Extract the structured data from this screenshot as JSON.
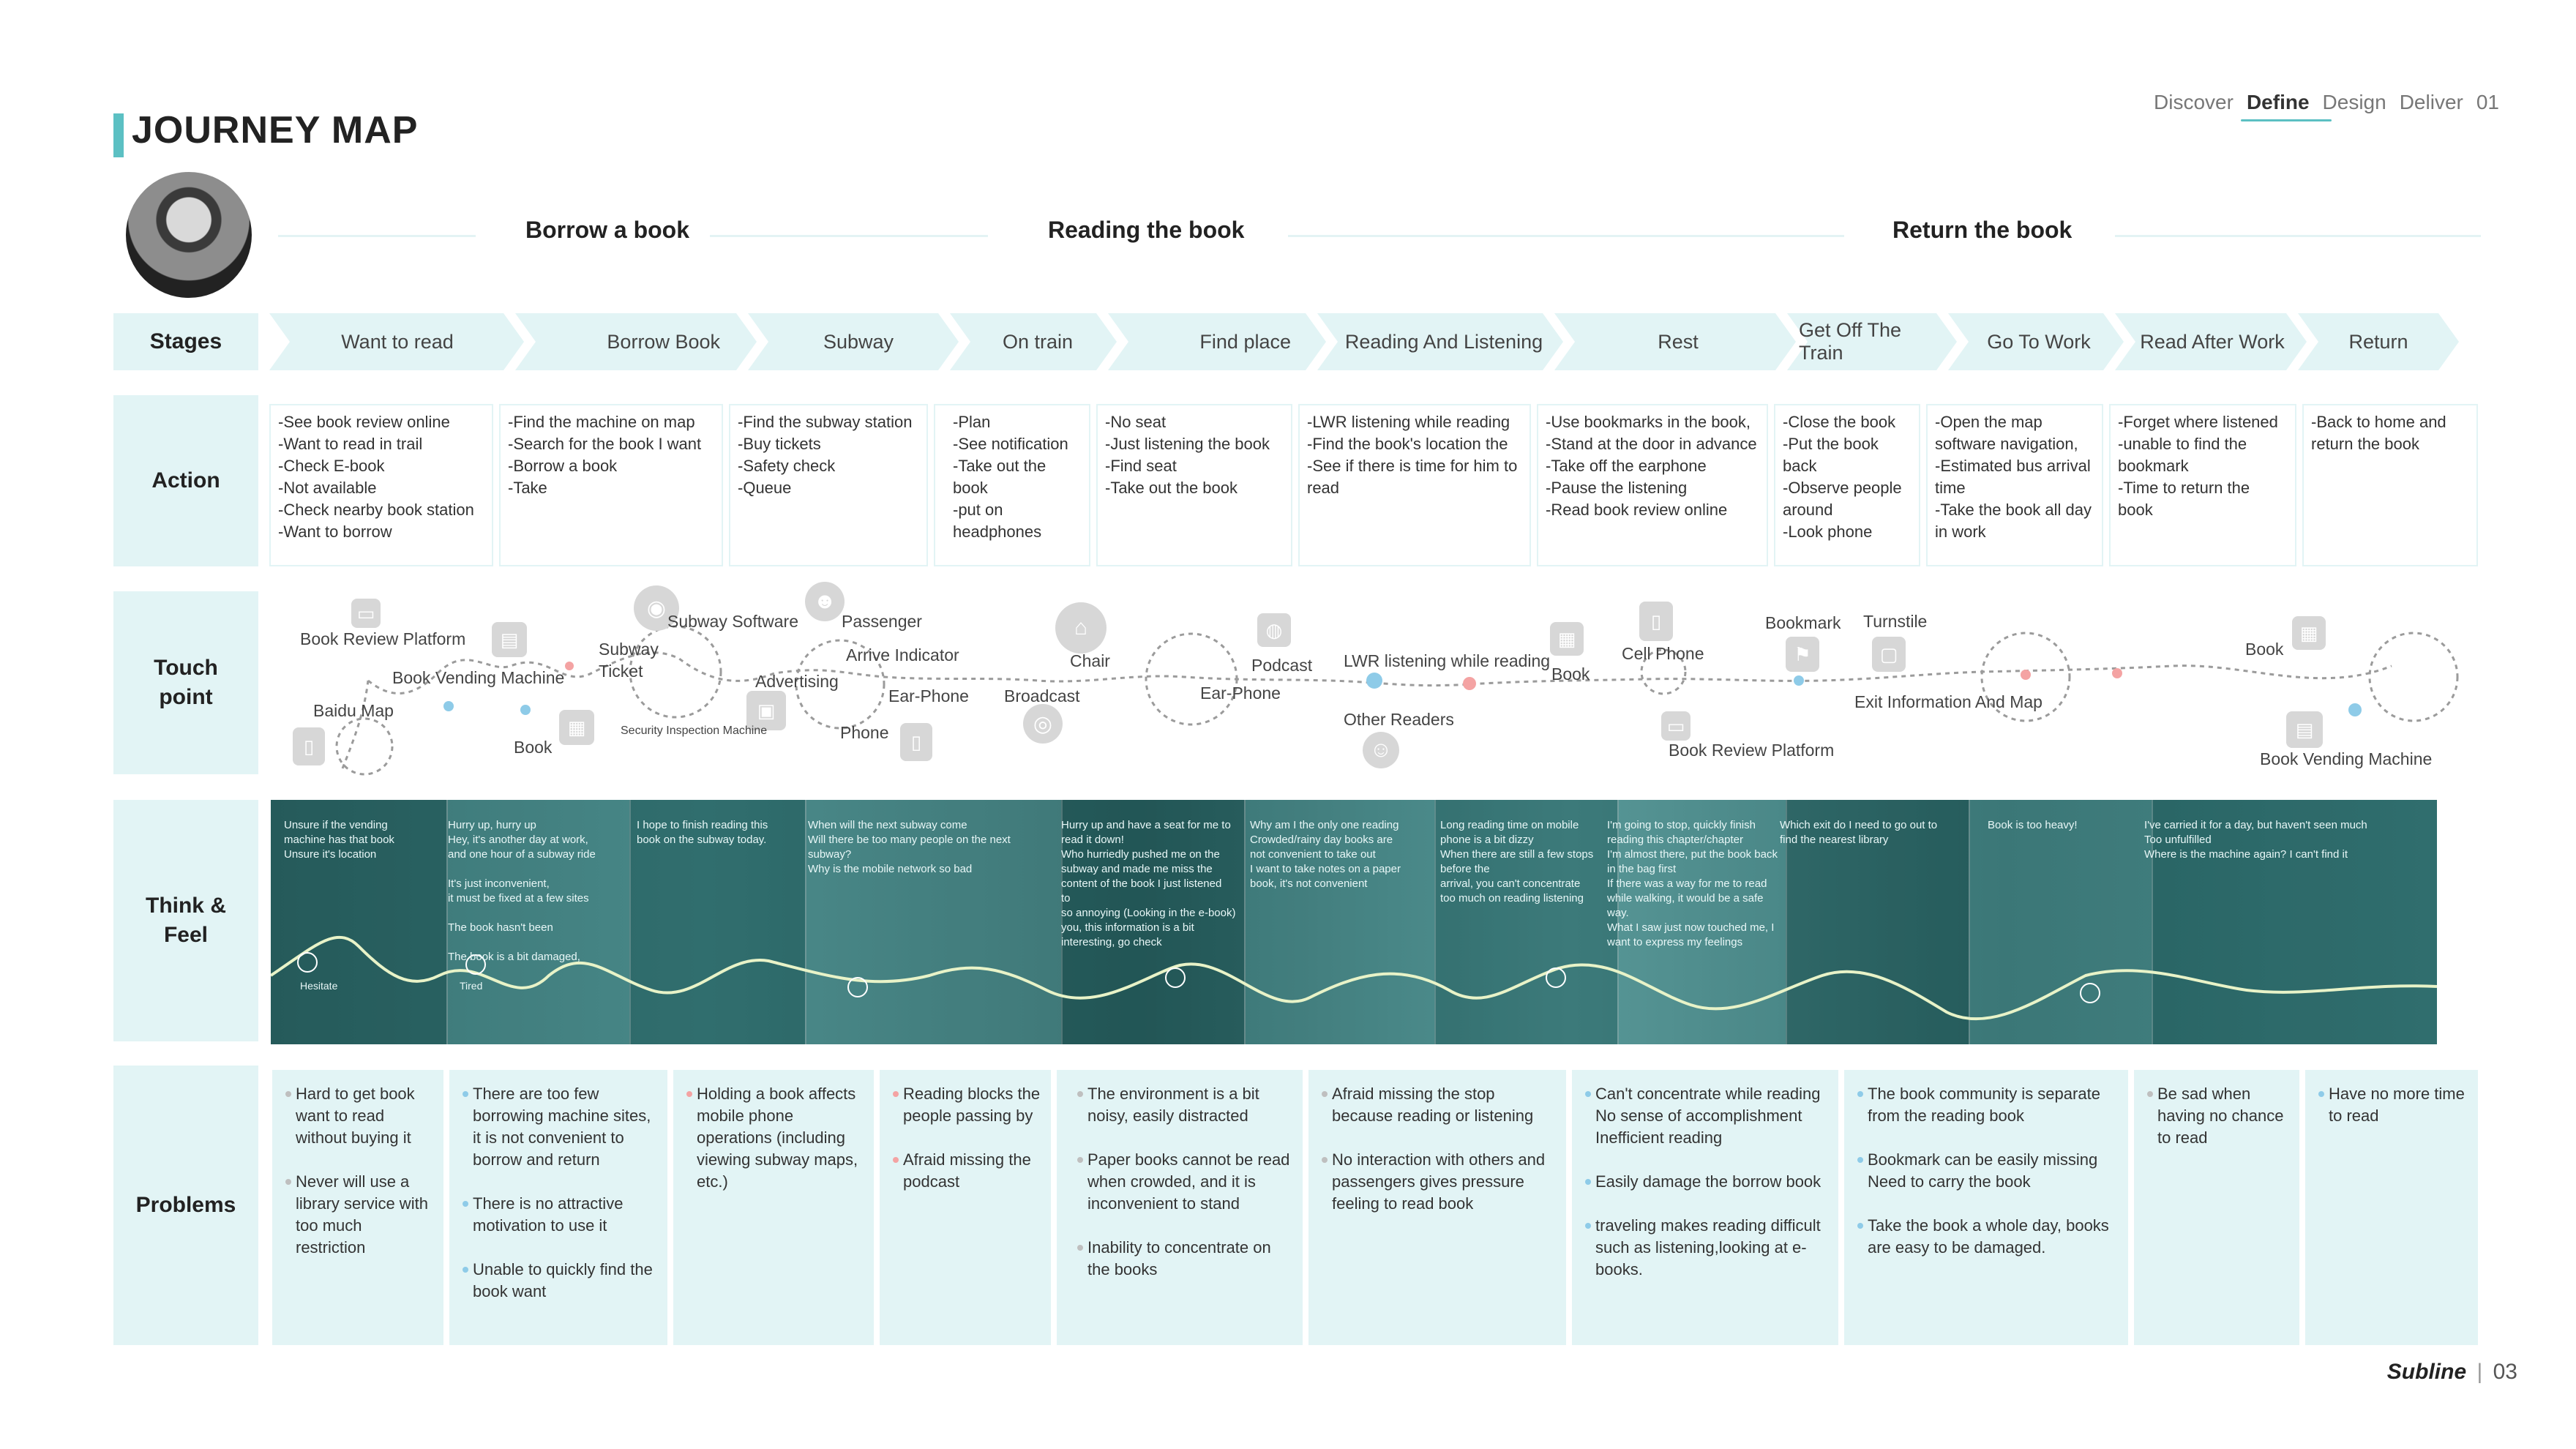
{
  "title": "JOURNEY MAP",
  "topnav": {
    "discover": "Discover",
    "define": "Define",
    "design": "Design",
    "deliver": "Deliver",
    "page": "01"
  },
  "phases": [
    "Borrow a book",
    "Reading the book",
    "Return the book"
  ],
  "row_labels": {
    "stages": "Stages",
    "action": "Action",
    "touchpoint": "Touch point",
    "think": "Think & Feel",
    "problems": "Problems"
  },
  "stages": [
    "Want to read",
    "Borrow Book",
    "Subway",
    "On train",
    "Find place",
    "Reading And Listening",
    "Rest",
    "Get Off The Train",
    "Go To Work",
    "Read After Work",
    "Return"
  ],
  "actions": [
    "-See book review online\n-Want to read in trail\n-Check E-book\n-Not available\n-Check nearby book station\n-Want to borrow",
    "-Find the machine on map\n-Search for the book I want\n-Borrow a book\n-Take",
    "-Find the subway station\n-Buy tickets\n-Safety check\n-Queue",
    "-Plan\n-See notification\n-Take out the book\n-put on headphones",
    "-No seat\n-Just listening the book\n-Find seat\n-Take out the book",
    "-LWR listening while reading\n-Find the book's location the\n-See if there is time for him to read",
    "-Use bookmarks in the book,\n-Stand at the door in advance\n-Take off the earphone\n-Pause the listening\n-Read book review online",
    "-Close the book\n-Put the book back\n-Observe people around\n-Look phone",
    "-Open the map software navigation,\n-Estimated bus arrival time\n-Take the book all day in work",
    "-Forget where listened\n-unable to find the bookmark\n-Time to return the book",
    "-Back to home and return the book"
  ],
  "touchpoints": [
    "Book Review Platform",
    "Baidu Map",
    "Book Vending Machine",
    "Book",
    "Subway Ticket",
    "Subway Software",
    "Security Inspection Machine",
    "Passenger",
    "Arrive Indicator",
    "Advertising",
    "Phone",
    "Ear-Phone",
    "Broadcast",
    "Chair",
    "Ear-Phone",
    "Podcast",
    "LWR listening while reading",
    "Other Readers",
    "Book",
    "Cell Phone",
    "Book Review Platform",
    "Bookmark",
    "Turnstile",
    "Exit Information And Map",
    "Book",
    "Book Vending Machine"
  ],
  "thoughts": [
    "Unsure if the vending\nmachine has that book\nUnsure it's location",
    "Hurry up, hurry up\nHey, it's another day at work,\nand one hour of a subway ride\n\nIt's just inconvenient,\nit must be fixed at a few sites\n\nThe book hasn't been\n\nThe book is a bit damaged,",
    "I hope to finish reading this\nbook on the subway today.",
    "When will the next subway come\nWill there be too many people on the next\nsubway?\nWhy is the mobile network so bad",
    "Hurry up and have a seat for me to\nread it down!\nWho hurriedly pushed me on the\nsubway and made me miss the\ncontent of the book I just listened\nto\nso annoying (Looking in the e-book)\nyou, this information is a bit\ninteresting, go check",
    "Why am I the only one reading\nCrowded/rainy day books are\nnot convenient to take out\nI want to take notes on a paper\nbook, it's not convenient",
    "Long reading time on mobile\nphone is a bit dizzy\nWhen there are still a few stops\nbefore the\narrival, you can't concentrate\ntoo much on reading listening",
    "I'm going to stop, quickly finish\nreading this chapter/chapter\nI'm almost there, put the book back\nin the bag first\nIf there was a way for me to read\nwhile walking, it would be a safe\nway.\nWhat I saw just now touched me, I want to express my feelings",
    "Which exit do I need to go out to\nfind the nearest library",
    "Book is too heavy!",
    "I've carried it for a day, but haven't seen much\nToo unfulfilled\nWhere is the machine again? I can't find it"
  ],
  "feel_labels": {
    "hesitate": "Hesitate",
    "tired": "Tired"
  },
  "problems": [
    [
      "Hard to get book want to read without buying it",
      "Never will use a library service with too much restriction"
    ],
    [
      "There are too few borrowing machine sites, it is not convenient to borrow and return",
      "There is no attractive motivation to use it",
      "Unable to quickly find the book want"
    ],
    [
      "Holding a book affects mobile phone operations (including viewing subway maps, etc.)"
    ],
    [
      "Reading blocks the people passing by",
      "Afraid missing the podcast"
    ],
    [
      "The environment is a bit noisy, easily distracted",
      "Paper books cannot be read when crowded, and it is inconvenient to stand",
      "Inability to concentrate on the books"
    ],
    [
      "Afraid missing the stop because reading or listening",
      "No interaction with others and passengers gives pressure feeling to read book"
    ],
    [
      "Can't concentrate while reading\nNo sense of accomplishment\nInefficient reading",
      "Easily damage the borrow book",
      "traveling makes reading difficult such as listening,looking at e-books."
    ],
    [
      "The book community is separate from the reading book",
      "Bookmark can be easily missing\nNeed to carry the book",
      "Take the book a whole day, books are easy to be damaged."
    ],
    [
      "Be sad when having no chance to read"
    ],
    [
      "Have no more time to read"
    ]
  ],
  "footer": {
    "brand": "Subline",
    "page": "03"
  },
  "colors": {
    "accent": "#5cc0c3",
    "row_bg": "#e2f4f5",
    "feel_strip": "#3a7d7d",
    "pink": "#f4a3a3",
    "blue": "#8ecbe8"
  }
}
